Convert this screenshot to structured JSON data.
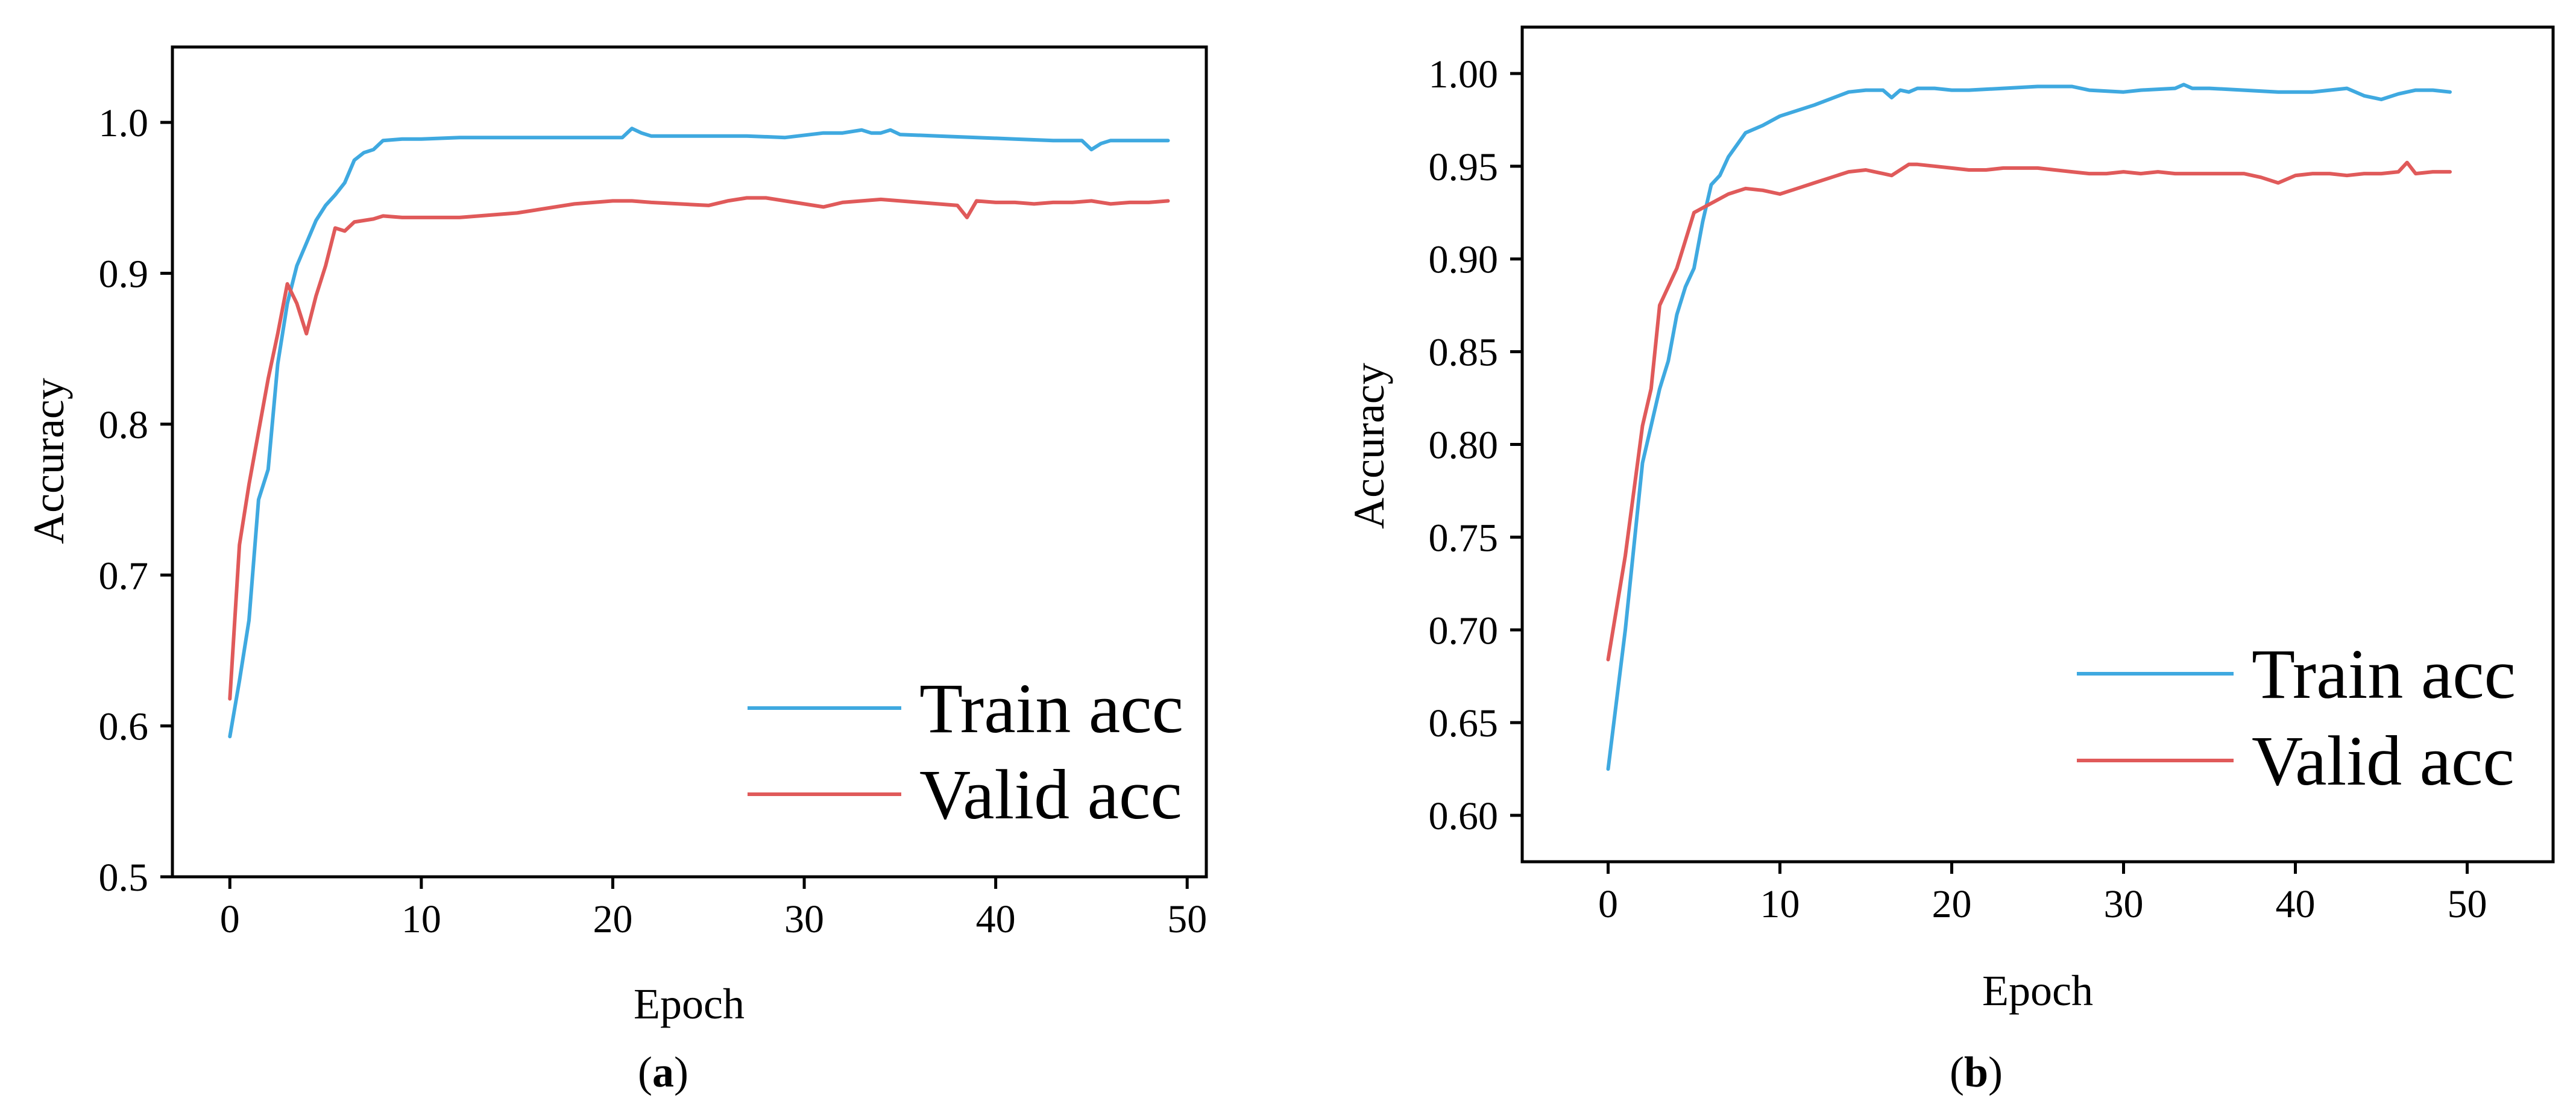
{
  "figure": {
    "colors": {
      "train": "#3fa9e0",
      "valid": "#e05a5a",
      "axis": "#000000"
    }
  },
  "chart_data": [
    {
      "type": "line",
      "panel": "a",
      "caption": {
        "open": "(",
        "letter": "a",
        "close": ")"
      },
      "xlabel": "Epoch",
      "ylabel": "Accuracy",
      "xlim": [
        -3,
        51
      ],
      "ylim": [
        0.5,
        1.05
      ],
      "xticks": [
        0,
        10,
        20,
        30,
        40,
        50
      ],
      "yticks": [
        0.5,
        0.6,
        0.7,
        0.8,
        0.9,
        1.0
      ],
      "ytick_labels": [
        "0.5",
        "0.6",
        "0.7",
        "0.8",
        "0.9",
        "1.0"
      ],
      "grid": false,
      "legend_position": "bottom-right",
      "series": [
        {
          "name": "Train acc",
          "color": "#3fa9e0",
          "x": [
            0,
            0.5,
            1,
            1.5,
            2,
            2.5,
            3,
            3.5,
            4,
            4.5,
            5,
            5.5,
            6,
            6.5,
            7,
            7.5,
            8,
            9,
            10,
            12,
            15,
            18,
            20,
            20.5,
            21,
            21.5,
            22,
            23,
            25,
            27,
            29,
            31,
            32,
            33,
            33.5,
            34,
            34.5,
            35,
            37,
            39,
            41,
            43,
            44,
            44.5,
            45,
            45.5,
            46,
            47,
            48,
            49
          ],
          "values": [
            0.593,
            0.63,
            0.67,
            0.75,
            0.77,
            0.84,
            0.88,
            0.905,
            0.92,
            0.935,
            0.945,
            0.952,
            0.96,
            0.975,
            0.98,
            0.982,
            0.988,
            0.989,
            0.989,
            0.99,
            0.99,
            0.99,
            0.99,
            0.99,
            0.996,
            0.993,
            0.991,
            0.991,
            0.991,
            0.991,
            0.99,
            0.993,
            0.993,
            0.995,
            0.993,
            0.993,
            0.995,
            0.992,
            0.991,
            0.99,
            0.989,
            0.988,
            0.988,
            0.988,
            0.982,
            0.986,
            0.988,
            0.988,
            0.988,
            0.988
          ]
        },
        {
          "name": "Valid acc",
          "color": "#e05a5a",
          "x": [
            0,
            0.5,
            1,
            1.5,
            2,
            2.5,
            3,
            3.5,
            4,
            4.5,
            5,
            5.5,
            6,
            6.5,
            7,
            7.5,
            8,
            9,
            10,
            12,
            15,
            18,
            20,
            21,
            22,
            25,
            26,
            27,
            28,
            29,
            30,
            31,
            32,
            33,
            34,
            35,
            36,
            37,
            38,
            38.5,
            39,
            40,
            41,
            42,
            43,
            44,
            45,
            46,
            47,
            48,
            49
          ],
          "values": [
            0.618,
            0.72,
            0.76,
            0.795,
            0.83,
            0.86,
            0.893,
            0.88,
            0.86,
            0.885,
            0.905,
            0.93,
            0.928,
            0.934,
            0.935,
            0.936,
            0.938,
            0.937,
            0.937,
            0.937,
            0.94,
            0.946,
            0.948,
            0.948,
            0.947,
            0.945,
            0.948,
            0.95,
            0.95,
            0.948,
            0.946,
            0.944,
            0.947,
            0.948,
            0.949,
            0.948,
            0.947,
            0.946,
            0.945,
            0.937,
            0.948,
            0.947,
            0.947,
            0.946,
            0.947,
            0.947,
            0.948,
            0.946,
            0.947,
            0.947,
            0.948
          ]
        }
      ]
    },
    {
      "type": "line",
      "panel": "b",
      "caption": {
        "open": "(",
        "letter": "b",
        "close": ")"
      },
      "xlabel": "Epoch",
      "ylabel": "Accuracy",
      "xlim": [
        -5,
        55
      ],
      "ylim": [
        0.575,
        1.025
      ],
      "xticks": [
        0,
        10,
        20,
        30,
        40,
        50
      ],
      "yticks": [
        0.6,
        0.65,
        0.7,
        0.75,
        0.8,
        0.85,
        0.9,
        0.95,
        1.0
      ],
      "ytick_labels": [
        "0.60",
        "0.65",
        "0.70",
        "0.75",
        "0.80",
        "0.85",
        "0.90",
        "0.95",
        "1.00"
      ],
      "grid": false,
      "legend_position": "bottom-right",
      "series": [
        {
          "name": "Train acc",
          "color": "#3fa9e0",
          "x": [
            0,
            1,
            2,
            2.5,
            3,
            3.5,
            4,
            4.5,
            5,
            5.5,
            6,
            6.5,
            7,
            8,
            9,
            10,
            12,
            14,
            15,
            16,
            16.5,
            17,
            17.5,
            18,
            19,
            20,
            21,
            23,
            25,
            27,
            28,
            30,
            31,
            33,
            33.5,
            34,
            35,
            37,
            39,
            41,
            42,
            43,
            44,
            45,
            46,
            47,
            48,
            49
          ],
          "values": [
            0.625,
            0.7,
            0.79,
            0.81,
            0.83,
            0.845,
            0.87,
            0.885,
            0.895,
            0.92,
            0.94,
            0.945,
            0.955,
            0.968,
            0.972,
            0.977,
            0.983,
            0.99,
            0.991,
            0.991,
            0.987,
            0.991,
            0.99,
            0.992,
            0.992,
            0.991,
            0.991,
            0.992,
            0.993,
            0.993,
            0.991,
            0.99,
            0.991,
            0.992,
            0.994,
            0.992,
            0.992,
            0.991,
            0.99,
            0.99,
            0.991,
            0.992,
            0.988,
            0.986,
            0.989,
            0.991,
            0.991,
            0.99
          ]
        },
        {
          "name": "Valid acc",
          "color": "#e05a5a",
          "x": [
            0,
            1,
            2,
            2.5,
            3,
            3.5,
            4,
            4.5,
            5,
            6,
            7,
            8,
            9,
            10,
            11,
            12,
            13,
            14,
            15,
            15.5,
            16,
            16.5,
            17,
            17.5,
            18,
            19,
            20,
            21,
            22,
            23,
            24,
            25,
            26,
            27,
            28,
            29,
            30,
            31,
            32,
            33,
            34,
            35,
            36,
            37,
            38,
            39,
            40,
            41,
            42,
            43,
            44,
            45,
            46,
            46.5,
            47,
            48,
            49
          ],
          "values": [
            0.684,
            0.74,
            0.81,
            0.83,
            0.875,
            0.885,
            0.895,
            0.91,
            0.925,
            0.93,
            0.935,
            0.938,
            0.937,
            0.935,
            0.938,
            0.941,
            0.944,
            0.947,
            0.948,
            0.947,
            0.946,
            0.945,
            0.948,
            0.951,
            0.951,
            0.95,
            0.949,
            0.948,
            0.948,
            0.949,
            0.949,
            0.949,
            0.948,
            0.947,
            0.946,
            0.946,
            0.947,
            0.946,
            0.947,
            0.946,
            0.946,
            0.946,
            0.946,
            0.946,
            0.944,
            0.941,
            0.945,
            0.946,
            0.946,
            0.945,
            0.946,
            0.946,
            0.947,
            0.952,
            0.946,
            0.947,
            0.947
          ]
        }
      ]
    }
  ]
}
